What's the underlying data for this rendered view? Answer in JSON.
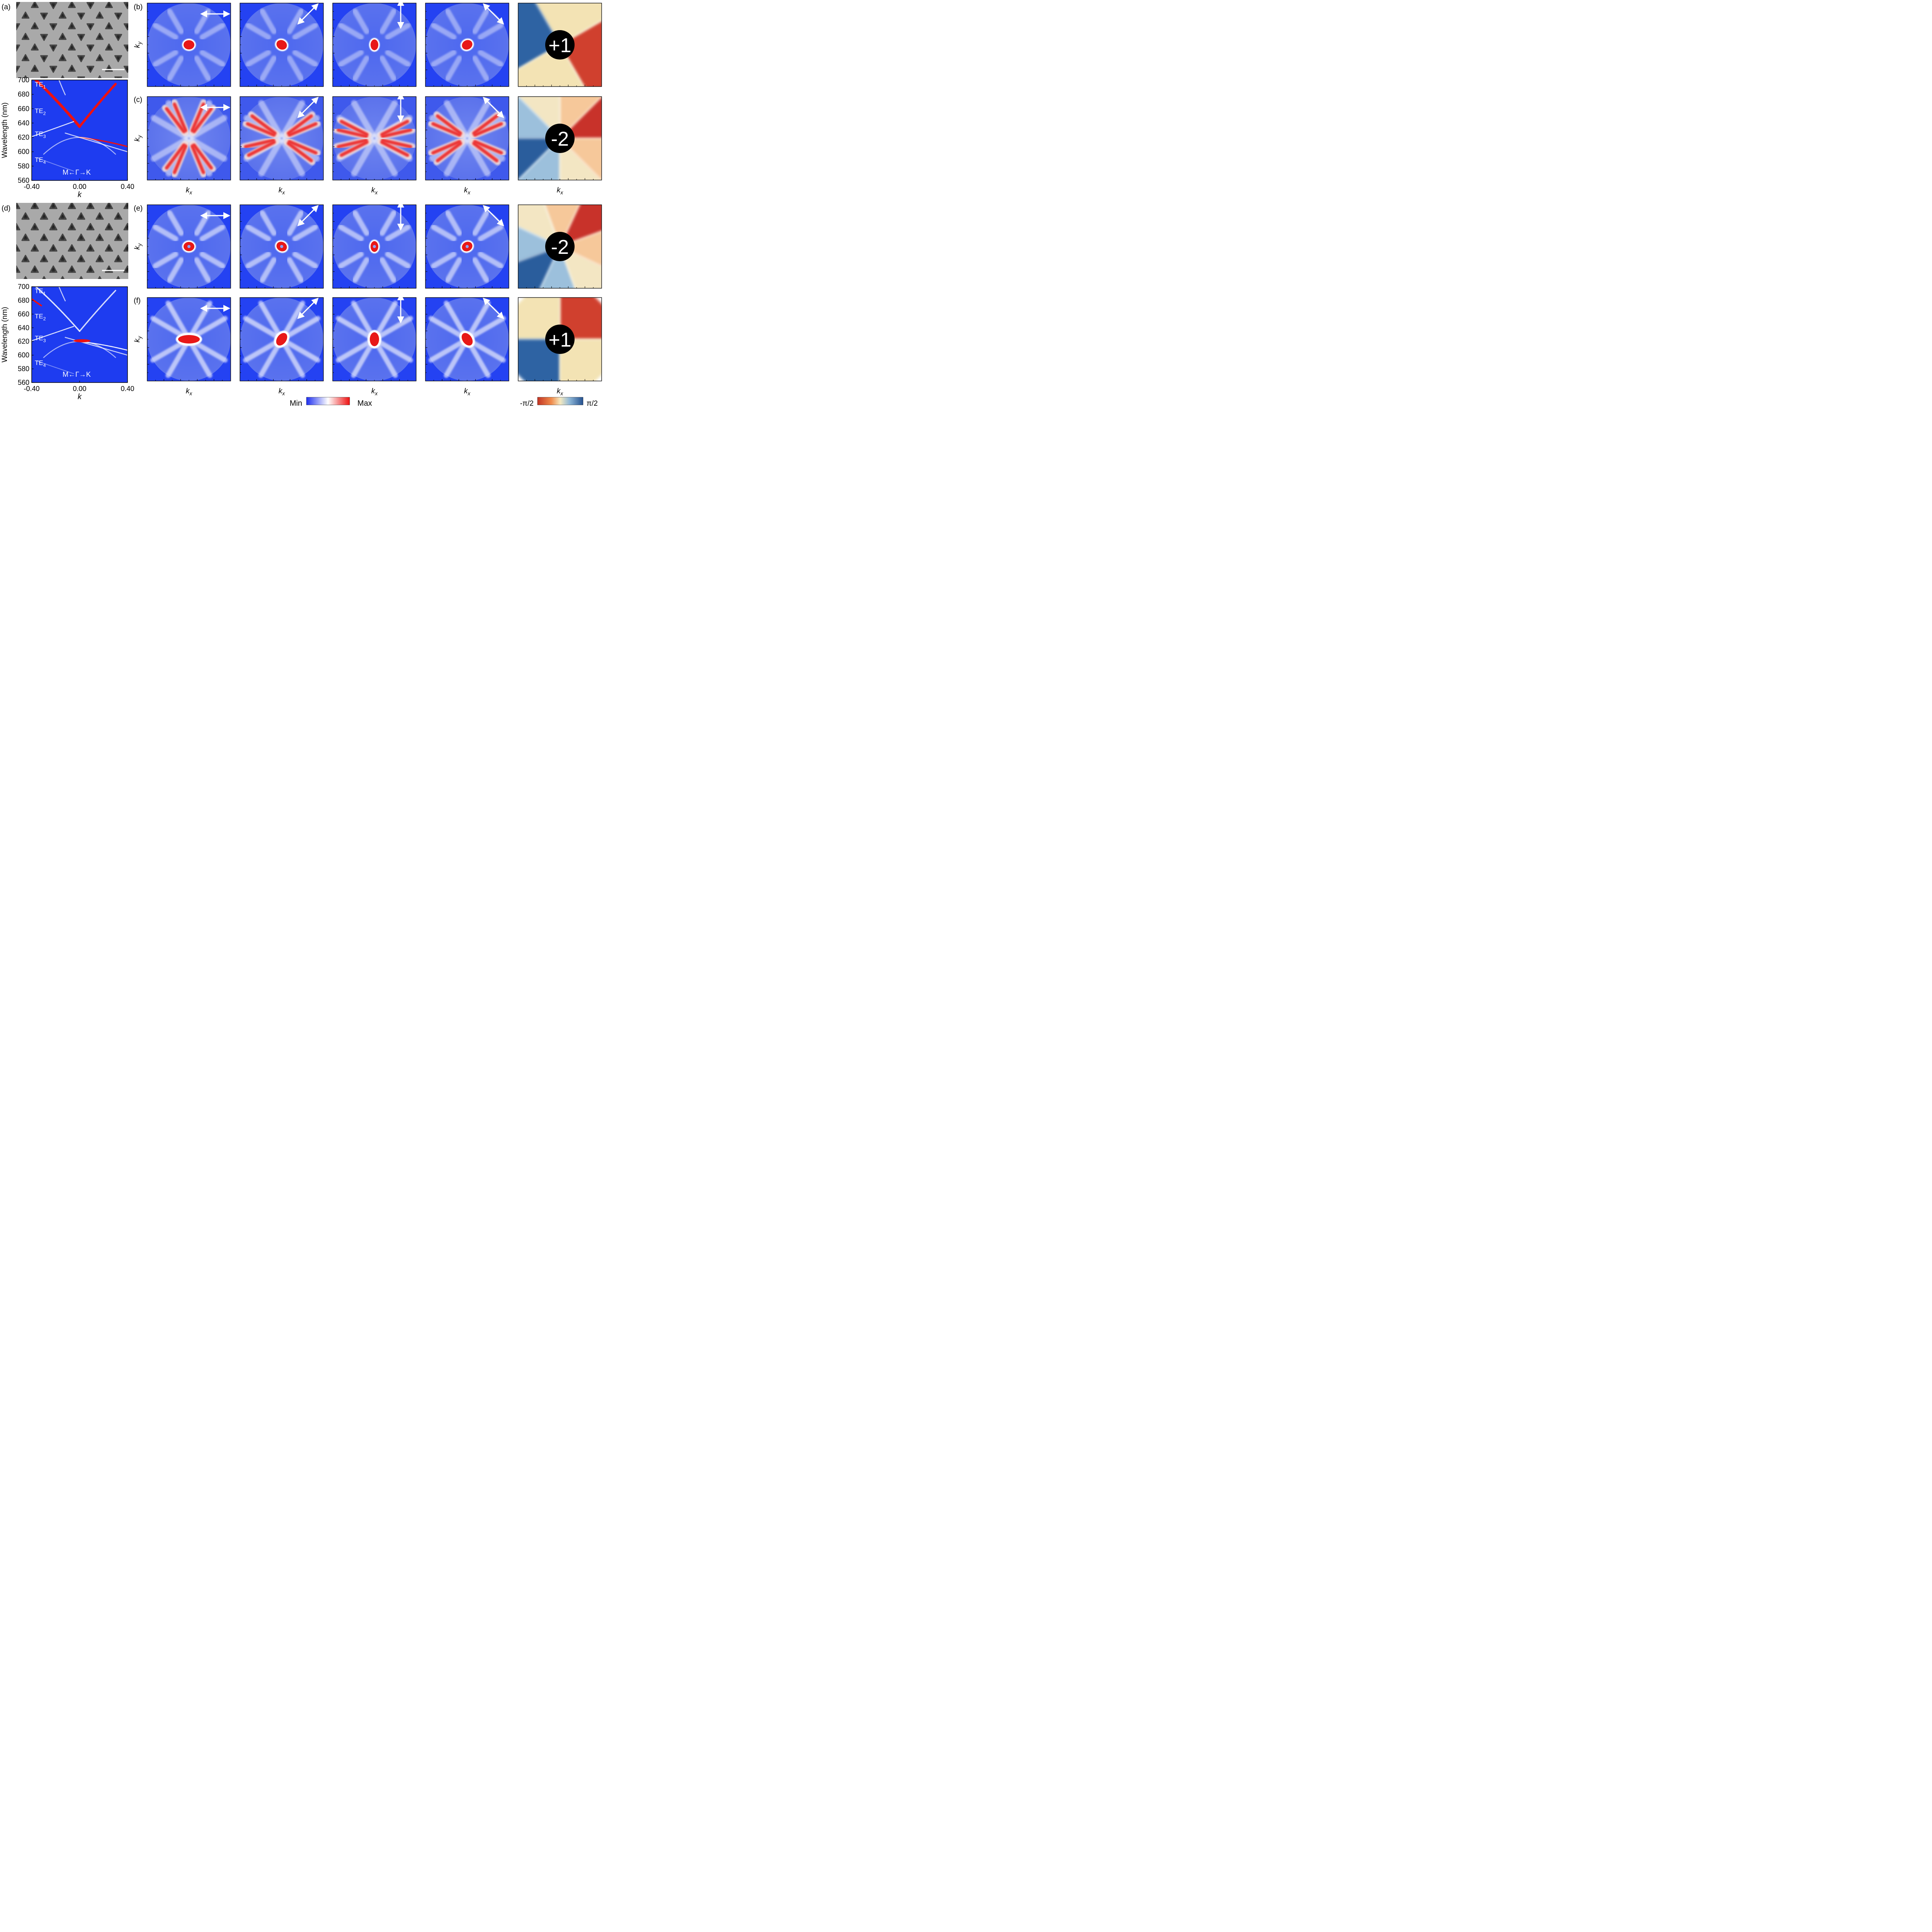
{
  "panels": {
    "a": "(a)",
    "b": "(b)",
    "c": "(c)",
    "d": "(d)",
    "e": "(e)",
    "f": "(f)"
  },
  "axes": {
    "kx": "k",
    "kx_sub": "x",
    "ky": "k",
    "ky_sub": "y",
    "k": "k",
    "wavelength": "Wavelength (nm)",
    "path": "M←Γ→K"
  },
  "chart_data": [
    {
      "type": "heatmap",
      "panel": "a",
      "xlabel": "k",
      "ylabel": "Wavelength (nm)",
      "xlim": [
        -0.4,
        0.4
      ],
      "ylim": [
        560,
        700
      ],
      "x_ticks": [
        "-0.40",
        "0.00",
        "0.40"
      ],
      "y_ticks": [
        "700",
        "680",
        "660",
        "640",
        "620",
        "600",
        "580",
        "560"
      ],
      "modes": [
        {
          "name": "TE",
          "sub": "1",
          "label_wavelength": 693
        },
        {
          "name": "TE",
          "sub": "2",
          "label_wavelength": 656
        },
        {
          "name": "TE",
          "sub": "3",
          "label_wavelength": 624
        },
        {
          "name": "TE",
          "sub": "4",
          "label_wavelength": 588
        }
      ],
      "annotation": "M←Γ→K"
    },
    {
      "type": "heatmap",
      "panel": "d",
      "xlabel": "k",
      "ylabel": "Wavelength (nm)",
      "xlim": [
        -0.4,
        0.4
      ],
      "ylim": [
        560,
        700
      ],
      "x_ticks": [
        "-0.40",
        "0.00",
        "0.40"
      ],
      "y_ticks": [
        "700",
        "680",
        "660",
        "640",
        "620",
        "600",
        "580",
        "560"
      ],
      "modes": [
        {
          "name": "TE",
          "sub": "1",
          "label_wavelength": 693
        },
        {
          "name": "TE",
          "sub": "2",
          "label_wavelength": 656
        },
        {
          "name": "TE",
          "sub": "3",
          "label_wavelength": 624
        },
        {
          "name": "TE",
          "sub": "4",
          "label_wavelength": 588
        }
      ],
      "annotation": "M←Γ→K"
    }
  ],
  "charges": {
    "b": "+1",
    "c": "-2",
    "e": "-2",
    "f": "+1"
  },
  "colorbars": {
    "intensity_min": "Min",
    "intensity_max": "Max",
    "phase_min": "-π/2",
    "phase_max": "π/2"
  },
  "colors": {
    "map_blue": "#1e3cf0",
    "map_red": "#e41a1a",
    "phase_red": "#c8332a",
    "phase_blue": "#2b5f9e",
    "phase_cream": "#f3e6b8"
  },
  "polarizer_orientations_deg": [
    0,
    45,
    90,
    135
  ]
}
